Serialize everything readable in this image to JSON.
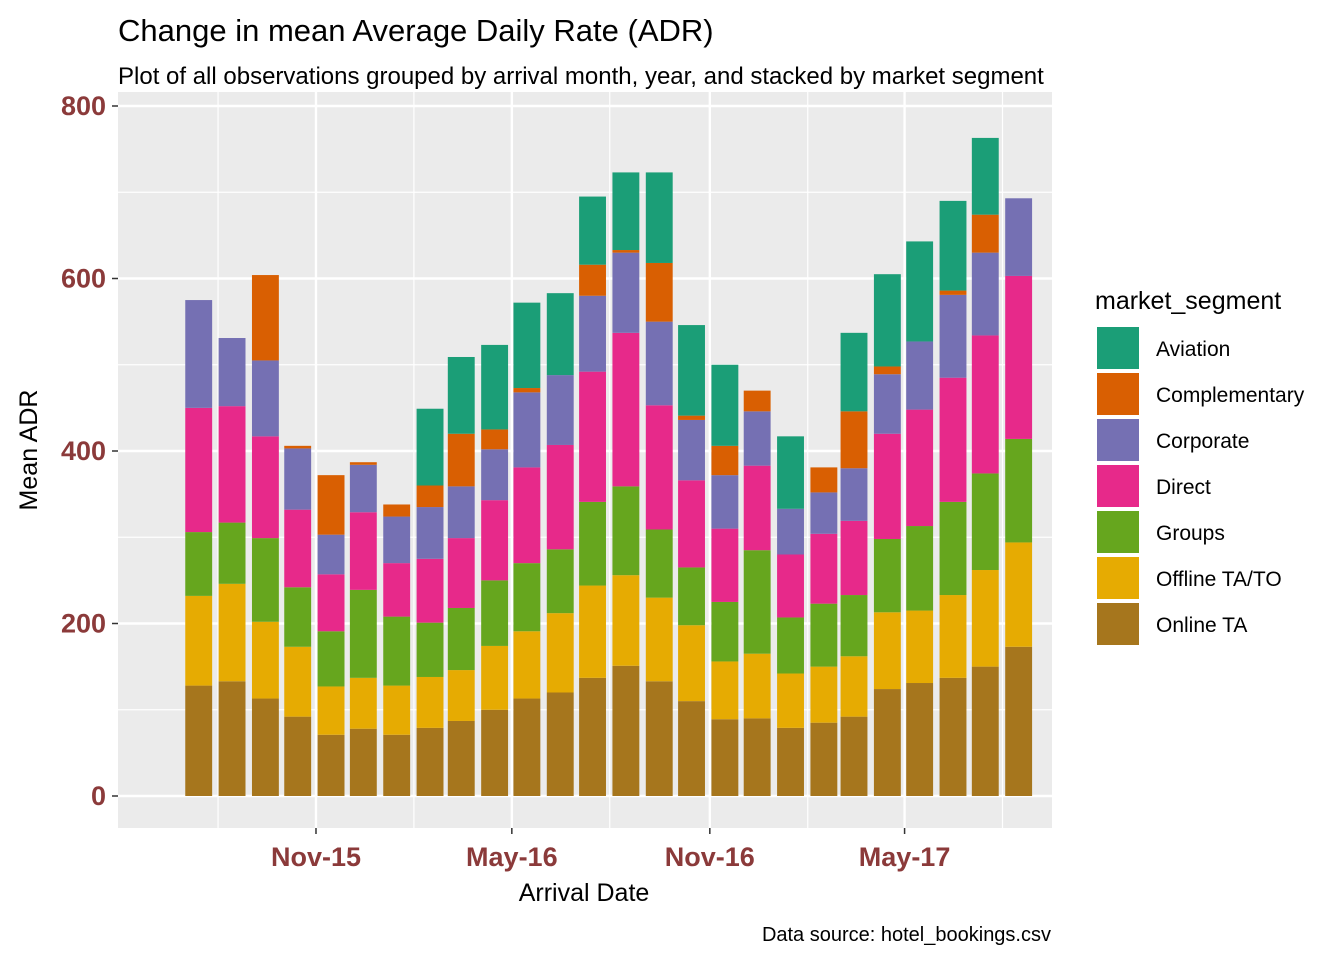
{
  "chart_data": {
    "type": "bar",
    "stacked": true,
    "title": "Change in mean Average Daily Rate (ADR)",
    "subtitle": "Plot of all observations grouped by arrival month, year, and stacked by market segment",
    "xlabel": "Arrival Date",
    "ylabel": "Mean ADR",
    "caption": "Data source: hotel_bookings.csv",
    "ylim": [
      0,
      800
    ],
    "yticks": [
      0,
      200,
      400,
      600,
      800
    ],
    "x_range": [
      "2015-05-01",
      "2017-09-15"
    ],
    "xticks": [
      {
        "date": "2015-11-01",
        "label": "Nov-15"
      },
      {
        "date": "2016-05-01",
        "label": "May-16"
      },
      {
        "date": "2016-11-01",
        "label": "Nov-16"
      },
      {
        "date": "2017-05-01",
        "label": "May-17"
      }
    ],
    "categories": [
      "Jul-15",
      "Aug-15",
      "Sep-15",
      "Oct-15",
      "Nov-15",
      "Dec-15",
      "Jan-16",
      "Feb-16",
      "Mar-16",
      "Apr-16",
      "May-16",
      "Jun-16",
      "Jul-16",
      "Aug-16",
      "Sep-16",
      "Oct-16",
      "Nov-16",
      "Dec-16",
      "Jan-17",
      "Feb-17",
      "Mar-17",
      "Apr-17",
      "May-17",
      "Jun-17",
      "Jul-17",
      "Aug-17"
    ],
    "dates": [
      "2015-07-15",
      "2015-08-15",
      "2015-09-15",
      "2015-10-15",
      "2015-11-15",
      "2015-12-15",
      "2016-01-15",
      "2016-02-15",
      "2016-03-15",
      "2016-04-15",
      "2016-05-15",
      "2016-06-15",
      "2016-07-15",
      "2016-08-15",
      "2016-09-15",
      "2016-10-15",
      "2016-11-15",
      "2016-12-15",
      "2017-01-15",
      "2017-02-15",
      "2017-03-15",
      "2017-04-15",
      "2017-05-15",
      "2017-06-15",
      "2017-07-15",
      "2017-08-15"
    ],
    "legend_title": "market_segment",
    "legend_position": "right",
    "grid": true,
    "series": [
      {
        "name": "Online TA",
        "color": "#A6761D",
        "values": [
          128,
          133,
          113,
          92,
          71,
          78,
          71,
          79,
          87,
          100,
          113,
          120,
          137,
          151,
          133,
          110,
          89,
          90,
          79,
          85,
          92,
          124,
          131,
          137,
          150,
          173
        ]
      },
      {
        "name": "Offline TA/TO",
        "color": "#E6AB02",
        "values": [
          104,
          113,
          89,
          81,
          56,
          59,
          57,
          59,
          59,
          74,
          78,
          92,
          107,
          105,
          97,
          88,
          67,
          75,
          63,
          65,
          70,
          89,
          84,
          96,
          112,
          121
        ]
      },
      {
        "name": "Groups",
        "color": "#66A61E",
        "values": [
          74,
          71,
          97,
          69,
          64,
          102,
          80,
          63,
          72,
          76,
          79,
          74,
          97,
          103,
          79,
          67,
          69,
          120,
          65,
          73,
          71,
          85,
          98,
          108,
          112,
          120
        ]
      },
      {
        "name": "Direct",
        "color": "#E7298A",
        "values": [
          144,
          135,
          118,
          90,
          66,
          90,
          62,
          74,
          81,
          93,
          111,
          121,
          151,
          178,
          144,
          101,
          85,
          98,
          73,
          81,
          86,
          122,
          135,
          144,
          160,
          189
        ]
      },
      {
        "name": "Corporate",
        "color": "#7570B3",
        "values": [
          125,
          79,
          88,
          71,
          46,
          55,
          54,
          60,
          60,
          59,
          87,
          81,
          88,
          93,
          97,
          70,
          62,
          63,
          53,
          48,
          61,
          69,
          79,
          96,
          96,
          90
        ]
      },
      {
        "name": "Complementary",
        "color": "#D95F02",
        "values": [
          0,
          0,
          99,
          3,
          69,
          3,
          14,
          25,
          61,
          23,
          5,
          0,
          36,
          3,
          68,
          5,
          34,
          24,
          0,
          29,
          66,
          9,
          0,
          5,
          44,
          0
        ]
      },
      {
        "name": "Aviation",
        "color": "#1B9E77",
        "values": [
          0,
          0,
          0,
          0,
          0,
          0,
          0,
          89,
          89,
          98,
          99,
          95,
          79,
          90,
          105,
          105,
          94,
          0,
          84,
          0,
          91,
          107,
          116,
          104,
          89,
          0
        ]
      }
    ]
  }
}
